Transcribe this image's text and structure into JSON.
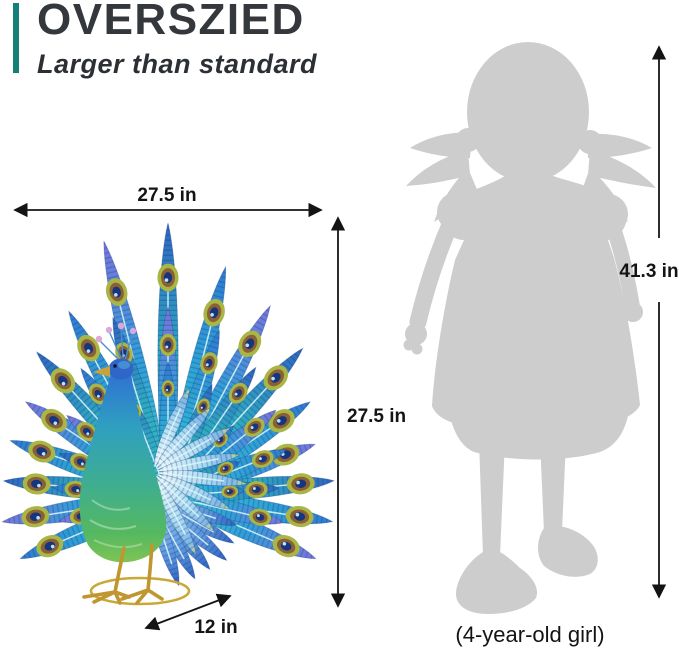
{
  "header": {
    "title": "OVERSZIED",
    "subtitle": "Larger than standard"
  },
  "product_dimensions": {
    "width": "27.5 in",
    "height": "27.5 in",
    "depth": "12 in"
  },
  "comparison": {
    "height": "41.3 in",
    "caption": "(4-year-old girl)"
  },
  "colors": {
    "accent_teal": "#15807a",
    "heading_text": "#34383c",
    "dimension_text": "#141414",
    "silhouette_gray": "#cdcdcd",
    "peacock_teal": "#2fb3d4",
    "peacock_blue": "#2f7ad0",
    "peacock_green": "#55b860",
    "eyespot_olive": "#a9b544",
    "gold": "#c9a837"
  }
}
